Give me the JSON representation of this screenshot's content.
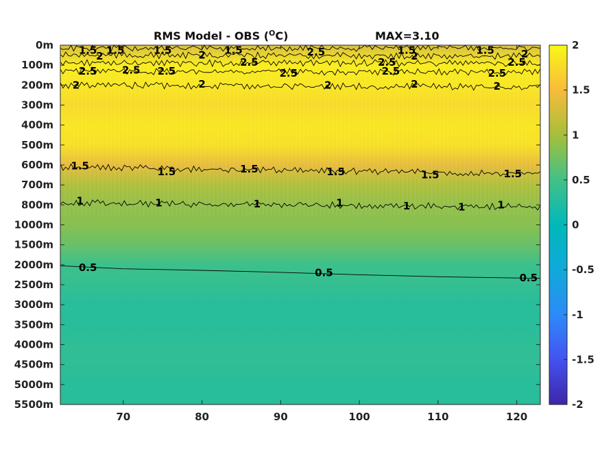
{
  "chart_data": {
    "type": "heatmap",
    "title": {
      "prefix": "RMS Model - OBS (",
      "superscript": "O",
      "suffix": "C)",
      "max_label": "MAX=3.10"
    },
    "x_ticks": [
      70,
      80,
      90,
      100,
      110,
      120
    ],
    "xlim": [
      62,
      123
    ],
    "y_ticks": [
      "0m",
      "100m",
      "200m",
      "300m",
      "400m",
      "500m",
      "600m",
      "700m",
      "800m",
      "1000m",
      "1500m",
      "2000m",
      "2500m",
      "3000m",
      "3500m",
      "4000m",
      "4500m",
      "5000m",
      "5500m"
    ],
    "depth_profile": [
      1.3,
      1.9,
      1.85,
      1.75,
      1.85,
      1.8,
      1.4,
      1.05,
      0.9,
      0.85,
      0.7,
      0.45,
      0.4,
      0.3,
      0.3,
      0.35,
      0.35,
      0.3,
      0.3
    ],
    "colorbar": {
      "min": -2,
      "max": 2,
      "ticks": [
        "2",
        "1.5",
        "1",
        "0.5",
        "0",
        "-0.5",
        "-1",
        "-1.5",
        "-2"
      ]
    },
    "contour_labels": [
      {
        "text": "1.5",
        "x": 65.5,
        "depth": 0.25
      },
      {
        "text": "1.5",
        "x": 69.0,
        "depth": 0.25
      },
      {
        "text": "1.5",
        "x": 75.0,
        "depth": 0.25
      },
      {
        "text": "1.5",
        "x": 84.0,
        "depth": 0.25
      },
      {
        "text": "1.5",
        "x": 106.0,
        "depth": 0.25
      },
      {
        "text": "1.5",
        "x": 116.0,
        "depth": 0.25
      },
      {
        "text": "2",
        "x": 67.0,
        "depth": 0.55
      },
      {
        "text": "2",
        "x": 80.0,
        "depth": 0.5
      },
      {
        "text": "2.5",
        "x": 94.5,
        "depth": 0.35
      },
      {
        "text": "2",
        "x": 107.0,
        "depth": 0.55
      },
      {
        "text": "2",
        "x": 121.0,
        "depth": 0.45
      },
      {
        "text": "2.5",
        "x": 65.5,
        "depth": 1.3
      },
      {
        "text": "2.5",
        "x": 71.0,
        "depth": 1.25
      },
      {
        "text": "2.5",
        "x": 75.5,
        "depth": 1.3
      },
      {
        "text": "2.5",
        "x": 86.0,
        "depth": 0.85
      },
      {
        "text": "2.5",
        "x": 91.0,
        "depth": 1.4
      },
      {
        "text": "2.5",
        "x": 103.5,
        "depth": 0.85
      },
      {
        "text": "2.5",
        "x": 104.0,
        "depth": 1.3
      },
      {
        "text": "2.5",
        "x": 117.5,
        "depth": 1.4
      },
      {
        "text": "2.5",
        "x": 120.0,
        "depth": 0.85
      },
      {
        "text": "2",
        "x": 64.0,
        "depth": 2.0
      },
      {
        "text": "2",
        "x": 80.0,
        "depth": 1.95
      },
      {
        "text": "2",
        "x": 96.0,
        "depth": 2.0
      },
      {
        "text": "2",
        "x": 107.0,
        "depth": 1.95
      },
      {
        "text": "2",
        "x": 117.5,
        "depth": 2.05
      },
      {
        "text": "1.5",
        "x": 64.5,
        "depth": 6.05
      },
      {
        "text": "1.5",
        "x": 75.5,
        "depth": 6.35
      },
      {
        "text": "1.5",
        "x": 86.0,
        "depth": 6.2
      },
      {
        "text": "1.5",
        "x": 97.0,
        "depth": 6.35
      },
      {
        "text": "1.5",
        "x": 109.0,
        "depth": 6.5
      },
      {
        "text": "1.5",
        "x": 119.5,
        "depth": 6.45
      },
      {
        "text": "1",
        "x": 64.5,
        "depth": 7.8
      },
      {
        "text": "1",
        "x": 74.5,
        "depth": 7.9
      },
      {
        "text": "1",
        "x": 87.0,
        "depth": 7.95
      },
      {
        "text": "1",
        "x": 97.5,
        "depth": 7.9
      },
      {
        "text": "1",
        "x": 106.0,
        "depth": 8.05
      },
      {
        "text": "1",
        "x": 113.0,
        "depth": 8.1
      },
      {
        "text": "1",
        "x": 118.0,
        "depth": 8.0
      },
      {
        "text": "0.5",
        "x": 65.5,
        "depth": 11.15
      },
      {
        "text": "0.5",
        "x": 95.5,
        "depth": 11.4
      },
      {
        "text": "0.5",
        "x": 121.5,
        "depth": 11.65
      }
    ],
    "contour_lines": [
      {
        "level": 1.5,
        "x": [
          62,
          123
        ],
        "depth": [
          0.15,
          0.15
        ],
        "jagged": true
      },
      {
        "level": 2,
        "x": [
          62,
          123
        ],
        "depth": [
          0.5,
          0.55
        ],
        "jagged": true
      },
      {
        "level": 2.5,
        "x": [
          62,
          123
        ],
        "depth": [
          0.9,
          0.9
        ],
        "jagged": true
      },
      {
        "level": 2.5,
        "x": [
          62,
          123
        ],
        "depth": [
          1.3,
          1.35
        ],
        "jagged": true
      },
      {
        "level": 2,
        "x": [
          62,
          123
        ],
        "depth": [
          2.0,
          2.1
        ],
        "jagged": true
      },
      {
        "level": 1.5,
        "x": [
          62,
          123
        ],
        "depth": [
          6.1,
          6.45
        ],
        "jagged": true
      },
      {
        "level": 1,
        "x": [
          62,
          123
        ],
        "depth": [
          7.9,
          8.1
        ],
        "jagged": true
      },
      {
        "level": 0.5,
        "x": [
          62,
          70,
          80,
          90,
          100,
          110,
          123
        ],
        "depth": [
          11.05,
          11.2,
          11.28,
          11.38,
          11.5,
          11.6,
          11.68
        ],
        "jagged": false
      }
    ]
  }
}
